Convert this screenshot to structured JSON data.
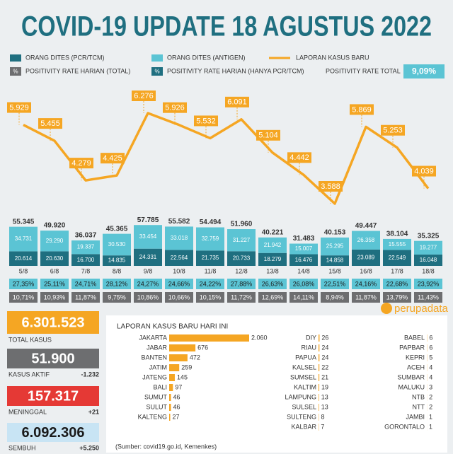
{
  "title": "COVID-19 UPDATE 18 AGUSTUS 2022",
  "chart_data": [
    {
      "type": "combo",
      "categories": [
        "5/8",
        "6/8",
        "7/8",
        "8/8",
        "9/8",
        "10/8",
        "11/8",
        "12/8",
        "13/8",
        "14/8",
        "15/8",
        "16/8",
        "17/8",
        "18/8"
      ],
      "series": [
        {
          "name": "ORANG DITES (PCR/TCM)",
          "type": "bar",
          "color": "#1f6f80",
          "values": [
            20614,
            20630,
            16700,
            14835,
            24331,
            22564,
            21735,
            20733,
            18279,
            16476,
            14858,
            23089,
            22549,
            16048
          ],
          "value_labels": [
            "20.614",
            "20.630",
            "16.700",
            "14.835",
            "24.331",
            "22.564",
            "21.735",
            "20.733",
            "18.279",
            "16.476",
            "14.858",
            "23.089",
            "22.549",
            "16.048"
          ]
        },
        {
          "name": "ORANG DITES (ANTIGEN)",
          "type": "bar",
          "color": "#5bc4d4",
          "values": [
            34731,
            29290,
            19337,
            30530,
            33454,
            33018,
            32759,
            31227,
            21942,
            15007,
            25295,
            26358,
            15555,
            19277
          ],
          "value_labels": [
            "34.731",
            "29.290",
            "19.337",
            "30.530",
            "33.454",
            "33.018",
            "32.759",
            "31.227",
            "21.942",
            "15.007",
            "25.295",
            "26.358",
            "15.555",
            "19.277"
          ]
        },
        {
          "name": "LAPORAN KASUS BARU",
          "type": "line",
          "color": "#f5a623",
          "values": [
            5929,
            5455,
            4279,
            4425,
            6276,
            5926,
            5532,
            6091,
            5104,
            4442,
            3588,
            5869,
            5253,
            4039
          ],
          "value_labels": [
            "5.929",
            "5.455",
            "4.279",
            "4.425",
            "6.276",
            "5.926",
            "5.532",
            "6.091",
            "5.104",
            "4.442",
            "3.588",
            "5.869",
            "5.253",
            "4.039"
          ]
        }
      ],
      "total_labels": [
        "55.345",
        "49.920",
        "36.037",
        "45.365",
        "57.785",
        "55.582",
        "54.494",
        "51.960",
        "40.221",
        "31.483",
        "40.153",
        "49.447",
        "38.104",
        "35.325"
      ]
    },
    {
      "type": "bar",
      "title": "LAPORAN KASUS BARU HARI INI",
      "color": "#f5a623",
      "categories": [
        "JAKARTA",
        "JABAR",
        "BANTEN",
        "JATIM",
        "JATENG",
        "BALI",
        "SUMUT",
        "SULUT",
        "KALTENG"
      ],
      "values": [
        2060,
        676,
        472,
        259,
        145,
        97,
        46,
        46,
        27
      ],
      "value_labels": [
        "2.060",
        "676",
        "472",
        "259",
        "145",
        "97",
        "46",
        "46",
        "27"
      ]
    },
    {
      "type": "bar",
      "color": "#f5a623",
      "categories": [
        "DIY",
        "RIAU",
        "PAPUA",
        "KALSEL",
        "SUMSEL",
        "KALTIM",
        "LAMPUNG",
        "SULSEL",
        "SULTENG",
        "KALBAR"
      ],
      "values": [
        26,
        24,
        24,
        22,
        21,
        19,
        13,
        13,
        8,
        7
      ]
    },
    {
      "type": "bar",
      "color": "#f5a623",
      "categories": [
        "BABEL",
        "PAPBAR",
        "KEPRI",
        "ACEH",
        "SUMBAR",
        "MALUKU",
        "NTB",
        "NTT",
        "JAMBI",
        "GORONTALO"
      ],
      "values": [
        6,
        6,
        5,
        4,
        4,
        3,
        2,
        2,
        1,
        1
      ]
    }
  ],
  "positivity": {
    "symbol": "%",
    "total_name": "POSITIVITY RATE HARIAN (TOTAL)",
    "pcr_name": "POSITIVITY RATE HARIAN (HANYA PCR/TCM)",
    "overall_name": "POSITIVITY RATE TOTAL",
    "overall": "9,09%",
    "total": [
      "27,35%",
      "25,11%",
      "24,71%",
      "28,12%",
      "24,27%",
      "24,66%",
      "24,22%",
      "27,88%",
      "26,63%",
      "26,08%",
      "22,51%",
      "24,16%",
      "22,68%",
      "23,92%"
    ],
    "pcr": [
      "10,71%",
      "10,93%",
      "11,87%",
      "9,75%",
      "10,86%",
      "10,66%",
      "10,15%",
      "11,72%",
      "12,69%",
      "14,11%",
      "8,94%",
      "11,87%",
      "13,79%",
      "11,43%"
    ]
  },
  "stats": [
    {
      "value": "6.301.523",
      "label": "TOTAL KASUS"
    },
    {
      "value": "51.900",
      "label": "KASUS AKTIF",
      "change": "-1.232"
    },
    {
      "value": "157.317",
      "label": "MENINGGAL",
      "change": "+21"
    },
    {
      "value": "6.092.306",
      "label": "SEMBUH",
      "change": "+5.250"
    }
  ],
  "brand": "perupadata",
  "source": "(Sumber: covid19.go.id, Kemenkes)"
}
